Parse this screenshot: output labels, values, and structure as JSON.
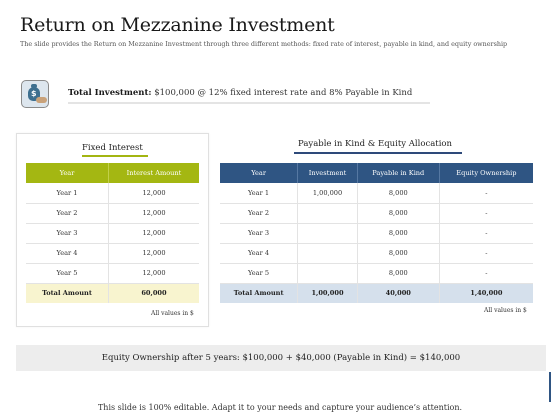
{
  "title": "Return on Mezzanine Investment",
  "subtitle": "The slide provides the Return on Mezzanine Investment through three different methods: fixed rate of interest, payable in kind, and equity ownership",
  "investment": {
    "icon": "money-bag-hand-icon",
    "label": "Total Investment:",
    "text": " $100,000 @ 12% fixed interest rate and 8% Payable in Kind"
  },
  "fixed_interest": {
    "heading": "Fixed Interest",
    "headers": [
      "Year",
      "Interest Amount"
    ],
    "rows": [
      [
        "Year 1",
        "12,000"
      ],
      [
        "Year 2",
        "12,000"
      ],
      [
        "Year 3",
        "12,000"
      ],
      [
        "Year 4",
        "12,000"
      ],
      [
        "Year 5",
        "12,000"
      ]
    ],
    "total": [
      "Total Amount",
      "60,000"
    ],
    "note": "All values in $",
    "accent_color": "#a4b712"
  },
  "pik_equity": {
    "heading": "Payable in Kind & Equity Allocation",
    "headers": [
      "Year",
      "Investment",
      "Payable in Kind",
      "Equity Ownership"
    ],
    "rows": [
      [
        "Year 1",
        "1,00,000",
        "8,000",
        "-"
      ],
      [
        "Year 2",
        "",
        "8,000",
        "-"
      ],
      [
        "Year 3",
        "",
        "8,000",
        "-"
      ],
      [
        "Year 4",
        "",
        "8,000",
        "-"
      ],
      [
        "Year 5",
        "",
        "8,000",
        "-"
      ]
    ],
    "total": [
      "Total Amount",
      "1,00,000",
      "40,000",
      "1,40,000"
    ],
    "note": "All values in $",
    "accent_color": "#2f5583"
  },
  "summary": "Equity Ownership  after 5 years: $100,000 + $40,000 (Payable in Kind) = $140,000",
  "footer": "This slide is 100% editable. Adapt it to your needs and capture your audience’s attention."
}
